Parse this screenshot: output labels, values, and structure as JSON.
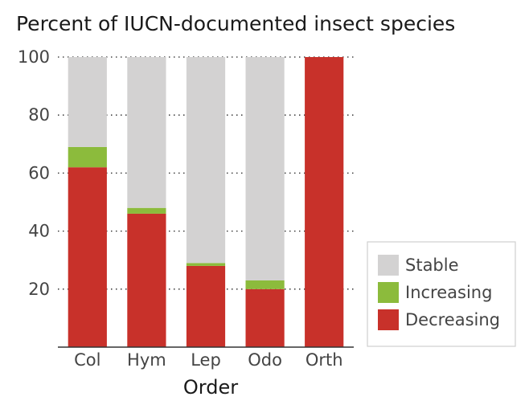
{
  "chart_data": {
    "type": "bar",
    "stacked": true,
    "title": "Percent of IUCN-documented insect species",
    "xlabel": "Order",
    "ylabel": "",
    "ylim": [
      0,
      100
    ],
    "yticks": [
      20,
      40,
      60,
      80,
      100
    ],
    "grid": "horizontal-dotted",
    "legend_position": "right",
    "categories": [
      "Col",
      "Hym",
      "Lep",
      "Odo",
      "Orth"
    ],
    "series": [
      {
        "name": "Decreasing",
        "color": "#c8312a",
        "values": [
          62,
          46,
          28,
          20,
          100
        ]
      },
      {
        "name": "Increasing",
        "color": "#8cbb3c",
        "values": [
          7,
          2,
          1,
          3,
          0
        ]
      },
      {
        "name": "Stable",
        "color": "#d3d2d2",
        "values": [
          31,
          52,
          71,
          77,
          0
        ]
      }
    ],
    "legend_order": [
      "Stable",
      "Increasing",
      "Decreasing"
    ]
  }
}
